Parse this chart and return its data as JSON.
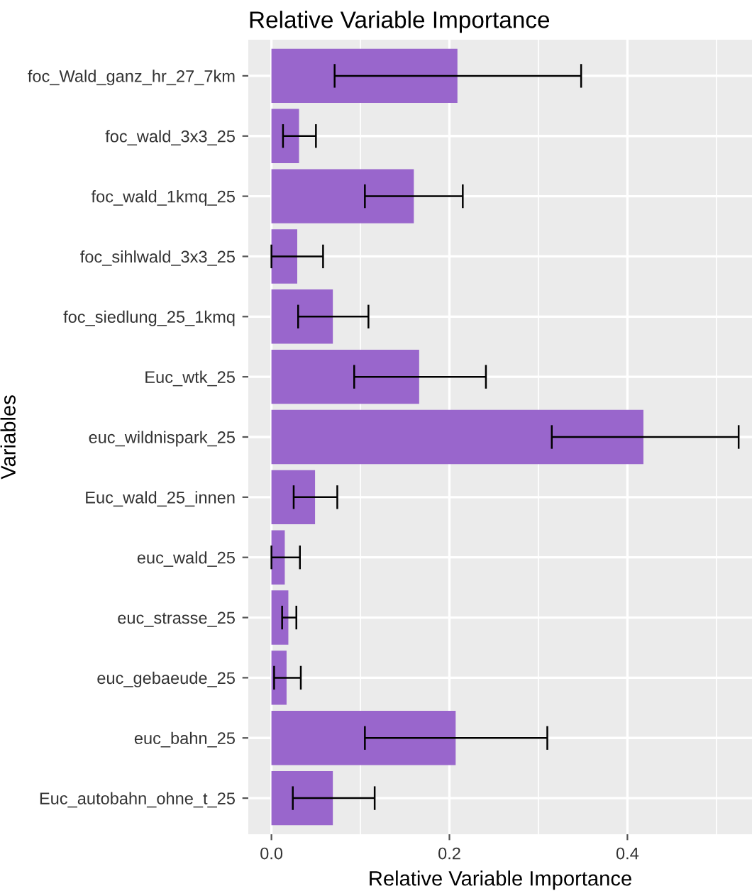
{
  "chart_data": {
    "type": "bar",
    "orientation": "horizontal",
    "title": "Relative Variable Importance",
    "xlabel": "Relative Variable Importance",
    "ylabel": "Variables",
    "categories": [
      "foc_Wald_ganz_hr_27_7km",
      "foc_wald_3x3_25",
      "foc_wald_1kmq_25",
      "foc_sihlwald_3x3_25",
      "foc_siedlung_25_1kmq",
      "Euc_wtk_25",
      "euc_wildnispark_25",
      "Euc_wald_25_innen",
      "euc_wald_25",
      "euc_strasse_25",
      "euc_gebaeude_25",
      "euc_bahn_25",
      "Euc_autobahn_ohne_t_25"
    ],
    "values": [
      0.209,
      0.031,
      0.16,
      0.029,
      0.069,
      0.166,
      0.418,
      0.049,
      0.015,
      0.019,
      0.017,
      0.207,
      0.069
    ],
    "errors": [
      [
        0.071,
        0.348
      ],
      [
        0.013,
        0.05
      ],
      [
        0.105,
        0.215
      ],
      [
        0.0,
        0.058
      ],
      [
        0.03,
        0.109
      ],
      [
        0.093,
        0.241
      ],
      [
        0.315,
        0.525
      ],
      [
        0.025,
        0.074
      ],
      [
        0.0,
        0.032
      ],
      [
        0.012,
        0.028
      ],
      [
        0.003,
        0.033
      ],
      [
        0.105,
        0.31
      ],
      [
        0.024,
        0.116
      ]
    ],
    "color": "#9966cc",
    "xlim": [
      -0.026,
      0.54
    ],
    "xticks": [
      {
        "value": 0,
        "label": "0.0"
      },
      {
        "value": 0.2,
        "label": "0.2"
      },
      {
        "value": 0.4,
        "label": "0.4"
      }
    ],
    "grid": true
  }
}
